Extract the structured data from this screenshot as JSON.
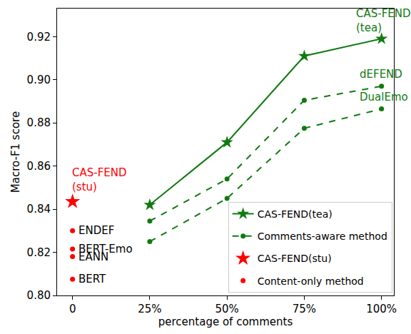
{
  "chart_data": {
    "type": "line",
    "x_label": "percentage of comments",
    "y_label": "Macro-F1 score",
    "xlim": [
      -5,
      104
    ],
    "xticks": [
      0,
      {
        "value": 25,
        "label": "25%"
      },
      {
        "value": 50,
        "label": "50%"
      },
      {
        "value": 75,
        "label": "75%"
      },
      {
        "value": 100,
        "label": "100%"
      }
    ],
    "ylim": [
      0.8,
      0.933
    ],
    "yticks": [
      {
        "value": 0.8,
        "label": "0.80"
      },
      0.82,
      0.84,
      0.86,
      0.88,
      {
        "value": 0.9,
        "label": "0.90"
      },
      0.92
    ],
    "grid": false,
    "legend": "lower right",
    "series": [
      {
        "name": "CAS-FEND(tea)",
        "label": "CAS-FEND\n(tea)",
        "color": "#107a10",
        "marker": "star",
        "line_style": "solid",
        "x": [
          25,
          50,
          75,
          100
        ],
        "values": [
          0.842,
          0.871,
          0.911,
          0.919
        ]
      },
      {
        "name": "Comments-aware method",
        "label": "dEFEND",
        "color": "#107a10",
        "marker": "circle",
        "line_style": "dashed",
        "x": [
          25,
          50,
          75,
          100
        ],
        "values": [
          0.8345,
          0.854,
          0.8905,
          0.897
        ]
      },
      {
        "name": "Comments-aware method",
        "label": "DualEmo",
        "color": "#107a10",
        "marker": "circle",
        "line_style": "dashed",
        "x": [
          25,
          50,
          75,
          100
        ],
        "values": [
          0.825,
          0.845,
          0.8775,
          0.8865
        ]
      },
      {
        "name": "CAS-FEND(stu)",
        "label": "CAS-FEND\n(stu)",
        "color": "#ff0000",
        "marker": "star",
        "line_style": "none",
        "x": [
          0
        ],
        "values": [
          0.8435
        ]
      },
      {
        "name": "Content-only method",
        "labels": [
          "ENDEF",
          "BERT-Emo",
          "EANN",
          "BERT"
        ],
        "color": "#ff0000",
        "marker": "circle",
        "line_style": "none",
        "x": [
          0,
          0,
          0,
          0
        ],
        "values": [
          0.83,
          0.8215,
          0.818,
          0.8075
        ]
      }
    ]
  }
}
